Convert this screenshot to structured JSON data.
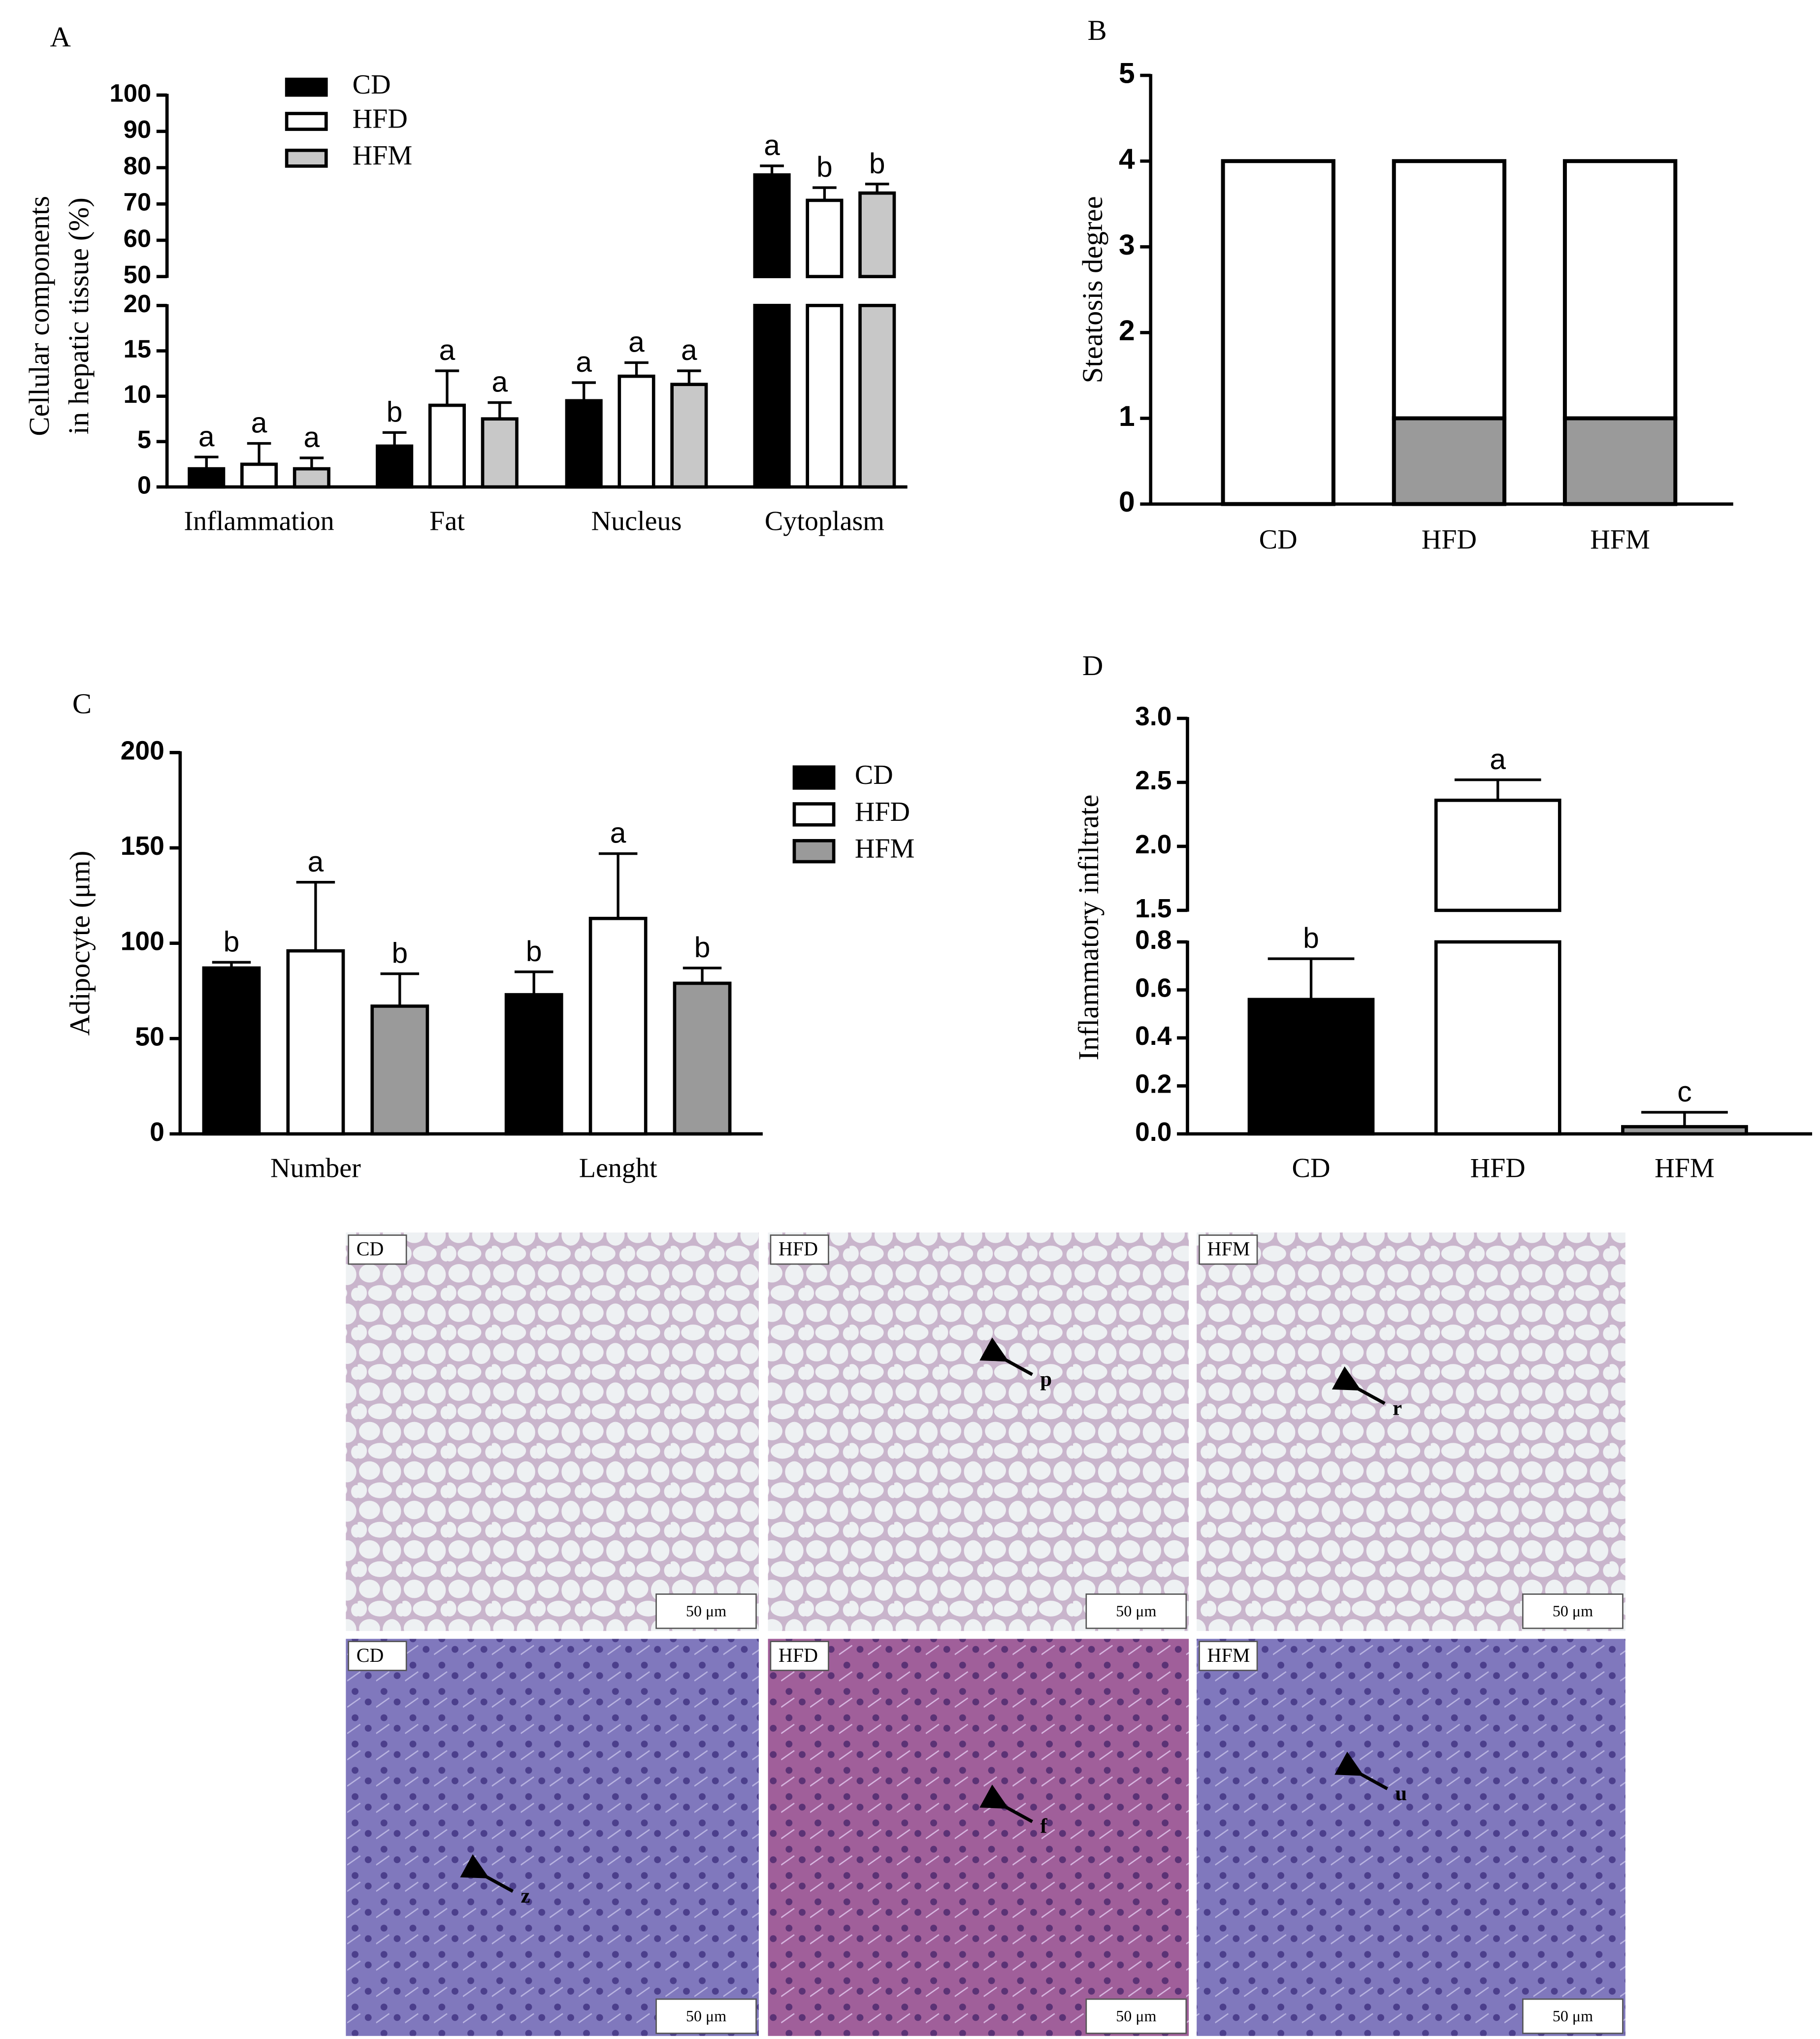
{
  "chart_data": [
    {
      "type": "bar",
      "panel": "A",
      "ylabel": [
        "Cellular components",
        "in hepatic tissue (%)"
      ],
      "categories": [
        "Inflammation",
        "Fat",
        "Nucleus",
        "Cytoplasm"
      ],
      "y_segments": [
        {
          "ylim": [
            0,
            20
          ],
          "yticks": [
            0,
            5,
            10,
            15,
            20
          ]
        },
        {
          "ylim": [
            50,
            100
          ],
          "yticks": [
            50,
            60,
            70,
            80,
            90,
            100
          ]
        }
      ],
      "series": [
        {
          "name": "CD",
          "color": "#000000",
          "values": [
            2,
            4.5,
            9.5,
            78
          ],
          "errors": [
            1.3,
            1.5,
            2,
            2.5
          ],
          "letters": [
            "a",
            "b",
            "a",
            "a"
          ]
        },
        {
          "name": "HFD",
          "color": "#ffffff",
          "values": [
            2.5,
            9,
            12.2,
            71
          ],
          "errors": [
            2.3,
            3.8,
            1.5,
            3.5
          ],
          "letters": [
            "a",
            "a",
            "a",
            "b"
          ]
        },
        {
          "name": "HFM",
          "color": "#c8c8c8",
          "values": [
            2,
            7.5,
            11.3,
            73
          ],
          "errors": [
            1.2,
            1.8,
            1.5,
            2.5
          ],
          "letters": [
            "a",
            "a",
            "a",
            "b"
          ]
        }
      ]
    },
    {
      "type": "stacked_bar",
      "panel": "B",
      "ylabel": "Steatosis degree",
      "categories": [
        "CD",
        "HFD",
        "HFM"
      ],
      "ylim": [
        0,
        5
      ],
      "yticks": [
        0,
        1,
        2,
        3,
        4,
        5
      ],
      "series": [
        {
          "color": "#9a9a9a",
          "values": [
            0,
            1,
            1
          ]
        },
        {
          "color": "#ffffff",
          "values": [
            4,
            3,
            3
          ]
        }
      ]
    },
    {
      "type": "bar",
      "panel": "C",
      "ylabel": "Adipocyte (μm)",
      "categories": [
        "Number",
        "Lenght"
      ],
      "ylim": [
        0,
        200
      ],
      "yticks": [
        0,
        50,
        100,
        150,
        200
      ],
      "series": [
        {
          "name": "CD",
          "color": "#000000",
          "values": [
            87,
            73
          ],
          "errors": [
            3,
            12
          ],
          "letters": [
            "b",
            "b"
          ]
        },
        {
          "name": "HFD",
          "color": "#ffffff",
          "values": [
            96,
            113
          ],
          "errors": [
            36,
            34
          ],
          "letters": [
            "a",
            "a"
          ]
        },
        {
          "name": "HFM",
          "color": "#9a9a9a",
          "values": [
            67,
            79
          ],
          "errors": [
            17,
            8
          ],
          "letters": [
            "b",
            "b"
          ]
        }
      ]
    },
    {
      "type": "bar",
      "panel": "D",
      "ylabel": "Inflammatory infiltrate",
      "categories": [
        "CD",
        "HFD",
        "HFM"
      ],
      "y_segments": [
        {
          "ylim": [
            0,
            0.8
          ],
          "yticks": [
            {
              "value": 0,
              "label": "0.0"
            },
            0.2,
            0.4,
            0.6,
            0.8
          ]
        },
        {
          "ylim": [
            1.5,
            3
          ],
          "yticks": [
            1.5,
            {
              "value": 2,
              "label": "2.0"
            },
            2.5,
            {
              "value": 3,
              "label": "3.0"
            }
          ]
        }
      ],
      "values": [
        0.56,
        2.36,
        0.03
      ],
      "errors": [
        0.17,
        0.16,
        0.06
      ],
      "letters": [
        "b",
        "a",
        "c"
      ],
      "colors": [
        "#000000",
        "#ffffff",
        "#9a9a9a"
      ]
    }
  ],
  "micrographs": {
    "panels": [
      {
        "label": "CD",
        "scale_bar": "50 μm"
      },
      {
        "label": "HFD",
        "scale_bar": "50 μm",
        "marker": "p"
      },
      {
        "label": "HFM",
        "scale_bar": "50 μm",
        "marker": "r"
      },
      {
        "label": "CD",
        "scale_bar": "50 μm",
        "marker": "z"
      },
      {
        "label": "HFD",
        "scale_bar": "50 μm",
        "marker": "f"
      },
      {
        "label": "HFM",
        "scale_bar": "50 μm",
        "marker": "u"
      }
    ]
  }
}
